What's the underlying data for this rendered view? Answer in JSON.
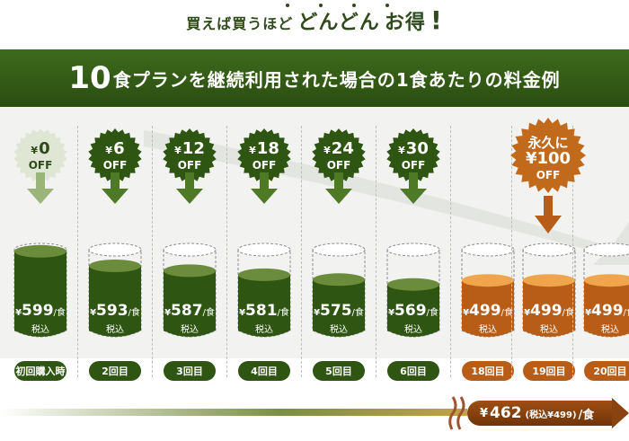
{
  "headline": {
    "part1": "買えば買うほど",
    "part2": "どんどん",
    "part3": "お得",
    "bang": "!"
  },
  "banner": {
    "num": "10",
    "text": "食プランを継続利用された場合の1食あたりの料金例"
  },
  "columns": [
    {
      "off": "0",
      "off_label": "OFF",
      "price": "599",
      "unit": "/食",
      "tax": "税込",
      "label": "初回購入時",
      "theme": "green"
    },
    {
      "off": "6",
      "off_label": "OFF",
      "price": "593",
      "unit": "/食",
      "tax": "税込",
      "label": "2回目",
      "theme": "green"
    },
    {
      "off": "12",
      "off_label": "OFF",
      "price": "587",
      "unit": "/食",
      "tax": "税込",
      "label": "3回目",
      "theme": "green"
    },
    {
      "off": "18",
      "off_label": "OFF",
      "price": "581",
      "unit": "/食",
      "tax": "税込",
      "label": "4回目",
      "theme": "green"
    },
    {
      "off": "24",
      "off_label": "OFF",
      "price": "575",
      "unit": "/食",
      "tax": "税込",
      "label": "5回目",
      "theme": "green"
    },
    {
      "off": "30",
      "off_label": "OFF",
      "price": "569",
      "unit": "/食",
      "tax": "税込",
      "label": "6回目",
      "theme": "green"
    },
    {
      "off": "",
      "off_label": "",
      "price": "499",
      "unit": "/食",
      "tax": "税込",
      "label": "18回目",
      "theme": "orange"
    },
    {
      "off": "",
      "off_label": "",
      "price": "499",
      "unit": "/食",
      "tax": "税込",
      "label": "19回目",
      "theme": "orange"
    },
    {
      "off": "",
      "off_label": "",
      "price": "499",
      "unit": "/食",
      "tax": "税込",
      "label": "20回目",
      "theme": "orange"
    }
  ],
  "forever_badge": {
    "line1": "永久に",
    "amount": "100",
    "off": "OFF"
  },
  "yen": "¥",
  "final": {
    "price": "462",
    "tax_note": "(税込¥499)",
    "unit": "/食"
  },
  "colors": {
    "dark_green": "#2e5512",
    "orange": "#b85d17",
    "brown": "#8a4310"
  }
}
